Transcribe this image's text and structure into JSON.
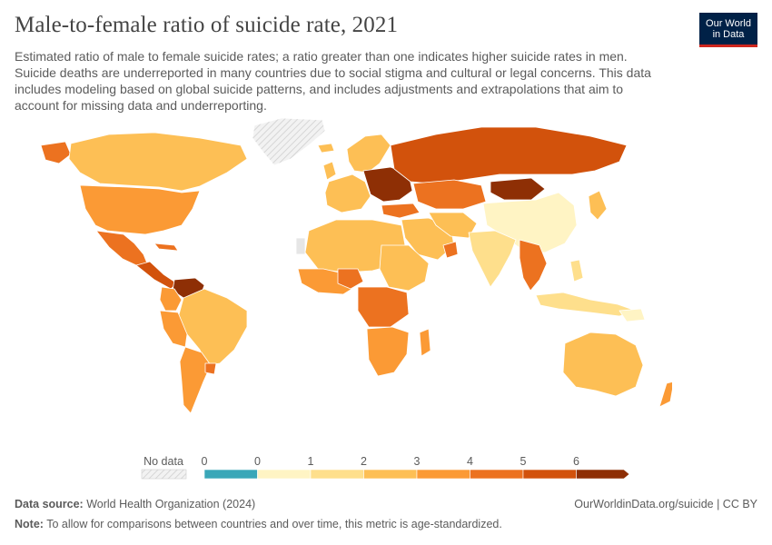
{
  "header": {
    "title": "Male-to-female ratio of suicide rate, 2021",
    "subtitle": "Estimated ratio of male to female suicide rates; a ratio greater than one indicates higher suicide rates in men. Suicide deaths are underreported in many countries due to social stigma and cultural or legal concerns. This data includes modeling based on global suicide patterns, and includes adjustments and extrapolations that aim to account for missing data and underreporting.",
    "logo_line1": "Our World",
    "logo_line2": "in Data"
  },
  "legend": {
    "no_data_label": "No data",
    "tick_labels": [
      "0",
      "0",
      "1",
      "2",
      "3",
      "4",
      "5",
      "6"
    ],
    "colors": [
      "#3aa7b8",
      "#fff4c4",
      "#fedf8c",
      "#fdbf55",
      "#fb9a35",
      "#ec7220",
      "#d2520c",
      "#8e2f05"
    ]
  },
  "map_colors": {
    "no_data": "#e6e6e6",
    "ocean": "#ffffff",
    "border": "#ffffff"
  },
  "footer": {
    "source_label": "Data source:",
    "source_text": "World Health Organization (2024)",
    "url_text": "OurWorldinData.org/suicide | CC BY",
    "note_label": "Note:",
    "note_text": "To allow for comparisons between countries and over time, this metric is age-standardized."
  }
}
